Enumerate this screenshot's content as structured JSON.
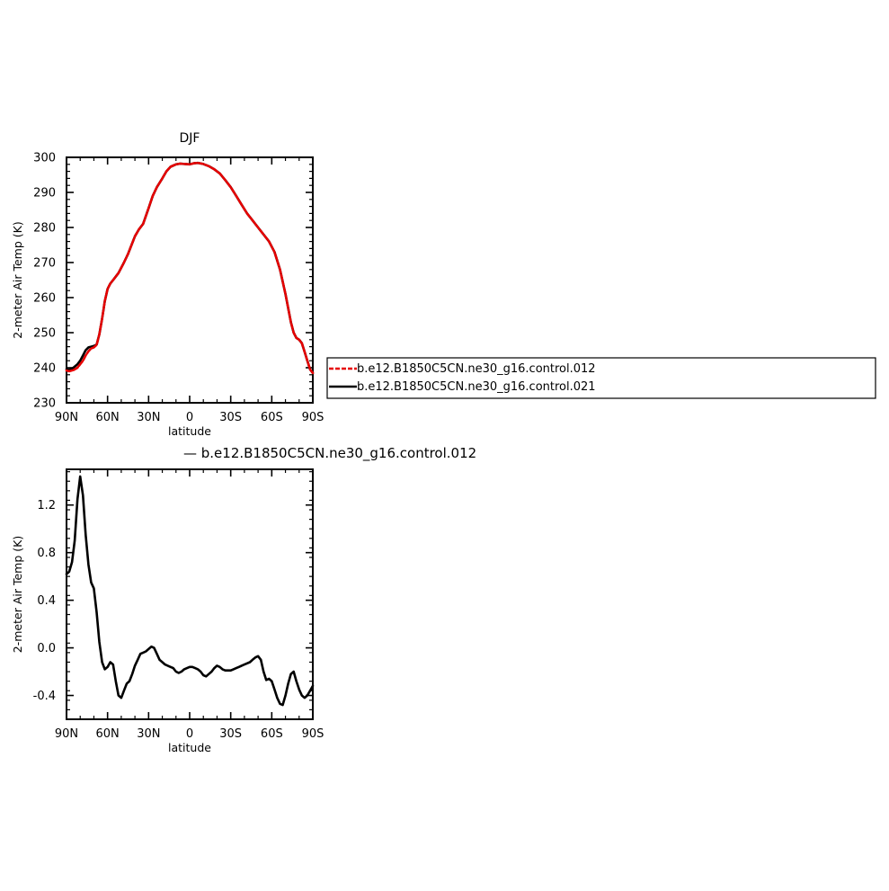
{
  "chart_data": [
    {
      "type": "line",
      "title": "DJF",
      "xlabel": "latitude",
      "ylabel": "2-meter Air Temp (K)",
      "xlim": [
        90,
        -90
      ],
      "ylim": [
        230,
        300
      ],
      "xticks": [
        {
          "value": 90,
          "label": "90N"
        },
        {
          "value": 60,
          "label": "60N"
        },
        {
          "value": 30,
          "label": "30N"
        },
        {
          "value": 0,
          "label": "0"
        },
        {
          "value": -30,
          "label": "30S"
        },
        {
          "value": -60,
          "label": "60S"
        },
        {
          "value": -90,
          "label": "90S"
        }
      ],
      "yticks": [
        230,
        240,
        250,
        260,
        270,
        280,
        290,
        300
      ],
      "legend": {
        "placement": "right"
      },
      "series": [
        {
          "name": "b.e12.B1850C5CN.ne30_g16.control.012",
          "color": "#e60000",
          "dashed": true,
          "x": [
            90,
            88,
            85,
            82,
            80,
            78,
            76,
            74,
            72,
            70,
            68,
            66,
            64,
            62,
            60,
            58,
            56,
            52,
            48,
            45,
            42,
            40,
            37,
            34,
            30,
            27,
            24,
            20,
            17,
            14,
            10,
            7,
            3,
            0,
            -3,
            -6,
            -10,
            -14,
            -18,
            -22,
            -26,
            -30,
            -34,
            -38,
            -42,
            -46,
            -50,
            -54,
            -58,
            -62,
            -66,
            -70,
            -72,
            -74,
            -76,
            -78,
            -80,
            -82,
            -84,
            -86,
            -88,
            -90
          ],
          "y": [
            239.2,
            239.0,
            239.3,
            240.0,
            241.0,
            242.0,
            243.5,
            244.7,
            245.5,
            245.8,
            246.5,
            249.5,
            254.0,
            259.0,
            262.5,
            264.0,
            265.0,
            267.0,
            270.0,
            272.5,
            275.5,
            277.5,
            279.5,
            281.0,
            285.5,
            289.0,
            291.5,
            294.0,
            296.0,
            297.3,
            298.0,
            298.2,
            298.1,
            298.0,
            298.3,
            298.4,
            298.1,
            297.5,
            296.6,
            295.4,
            293.5,
            291.5,
            289.0,
            286.5,
            284.0,
            282.0,
            280.0,
            278.0,
            276.0,
            273.0,
            268.0,
            261.0,
            257.0,
            253.0,
            250.0,
            248.5,
            248.0,
            247.0,
            244.5,
            242.0,
            239.5,
            238.5
          ]
        },
        {
          "name": "b.e12.B1850C5CN.ne30_g16.control.021",
          "color": "#000000",
          "dashed": false,
          "x": [
            90,
            88,
            85,
            82,
            80,
            78,
            76,
            74,
            72,
            70,
            68,
            66,
            64,
            62,
            60,
            58,
            56,
            52,
            48,
            45,
            42,
            40,
            37,
            34,
            30,
            27,
            24,
            20,
            17,
            14,
            10,
            7,
            3,
            0,
            -3,
            -6,
            -10,
            -14,
            -18,
            -22,
            -26,
            -30,
            -34,
            -38,
            -42,
            -46,
            -50,
            -54,
            -58,
            -62,
            -66,
            -70,
            -72,
            -74,
            -76,
            -78,
            -80,
            -82,
            -84,
            -86,
            -88,
            -90
          ],
          "y": [
            239.6,
            239.4,
            240.0,
            241.0,
            242.0,
            243.5,
            245.0,
            245.8,
            246.0,
            246.2,
            246.6,
            249.5,
            254.0,
            259.0,
            262.5,
            264.0,
            265.0,
            267.0,
            270.0,
            272.5,
            275.5,
            277.5,
            279.5,
            281.0,
            285.5,
            289.0,
            291.5,
            294.0,
            296.0,
            297.3,
            298.0,
            298.2,
            298.1,
            298.0,
            298.3,
            298.4,
            298.1,
            297.5,
            296.6,
            295.4,
            293.5,
            291.5,
            289.0,
            286.5,
            284.0,
            282.0,
            280.0,
            278.0,
            276.0,
            273.0,
            268.0,
            261.0,
            257.0,
            253.0,
            250.0,
            248.5,
            248.0,
            247.0,
            244.5,
            242.0,
            239.5,
            238.5
          ]
        }
      ]
    },
    {
      "type": "line",
      "title": "— b.e12.B1850C5CN.ne30_g16.control.012",
      "xlabel": "latitude",
      "ylabel": "2-meter Air Temp (K)",
      "xlim": [
        90,
        -90
      ],
      "ylim": [
        -0.6,
        1.5
      ],
      "xticks": [
        {
          "value": 90,
          "label": "90N"
        },
        {
          "value": 60,
          "label": "60N"
        },
        {
          "value": 30,
          "label": "30N"
        },
        {
          "value": 0,
          "label": "0"
        },
        {
          "value": -30,
          "label": "30S"
        },
        {
          "value": -60,
          "label": "60S"
        },
        {
          "value": -90,
          "label": "90S"
        }
      ],
      "yticks": [
        {
          "value": -0.4,
          "label": "-0.4"
        },
        {
          "value": 0.0,
          "label": "0.0"
        },
        {
          "value": 0.4,
          "label": "0.4"
        },
        {
          "value": 0.8,
          "label": "0.8"
        },
        {
          "value": 1.2,
          "label": "1.2"
        }
      ],
      "series": [
        {
          "color": "#000000",
          "dashed": false,
          "x": [
            90,
            88,
            86,
            84,
            82,
            80,
            78,
            76,
            74,
            72,
            70,
            68,
            66,
            64,
            62,
            60,
            58,
            56,
            54,
            52,
            50,
            48,
            46,
            44,
            42,
            40,
            38,
            36,
            34,
            32,
            30,
            28,
            26,
            24,
            22,
            20,
            18,
            16,
            14,
            12,
            10,
            8,
            6,
            4,
            2,
            0,
            -2,
            -4,
            -6,
            -8,
            -10,
            -12,
            -14,
            -16,
            -18,
            -20,
            -22,
            -24,
            -26,
            -28,
            -30,
            -32,
            -34,
            -36,
            -38,
            -40,
            -42,
            -44,
            -46,
            -48,
            -50,
            -52,
            -54,
            -56,
            -58,
            -60,
            -62,
            -64,
            -66,
            -68,
            -70,
            -72,
            -74,
            -76,
            -78,
            -80,
            -82,
            -84,
            -86,
            -88,
            -90
          ],
          "y": [
            0.62,
            0.64,
            0.72,
            0.9,
            1.25,
            1.44,
            1.28,
            0.95,
            0.7,
            0.55,
            0.5,
            0.3,
            0.05,
            -0.12,
            -0.18,
            -0.16,
            -0.12,
            -0.14,
            -0.28,
            -0.4,
            -0.42,
            -0.36,
            -0.3,
            -0.28,
            -0.22,
            -0.15,
            -0.1,
            -0.05,
            -0.04,
            -0.03,
            -0.01,
            0.01,
            0.0,
            -0.05,
            -0.1,
            -0.12,
            -0.14,
            -0.15,
            -0.16,
            -0.17,
            -0.2,
            -0.21,
            -0.2,
            -0.18,
            -0.17,
            -0.16,
            -0.16,
            -0.17,
            -0.18,
            -0.2,
            -0.23,
            -0.24,
            -0.22,
            -0.2,
            -0.17,
            -0.15,
            -0.16,
            -0.18,
            -0.19,
            -0.19,
            -0.19,
            -0.18,
            -0.17,
            -0.16,
            -0.15,
            -0.14,
            -0.13,
            -0.12,
            -0.1,
            -0.08,
            -0.07,
            -0.1,
            -0.2,
            -0.27,
            -0.26,
            -0.28,
            -0.35,
            -0.42,
            -0.47,
            -0.48,
            -0.4,
            -0.3,
            -0.22,
            -0.2,
            -0.28,
            -0.35,
            -0.4,
            -0.42,
            -0.4,
            -0.36,
            -0.32
          ]
        }
      ]
    }
  ]
}
